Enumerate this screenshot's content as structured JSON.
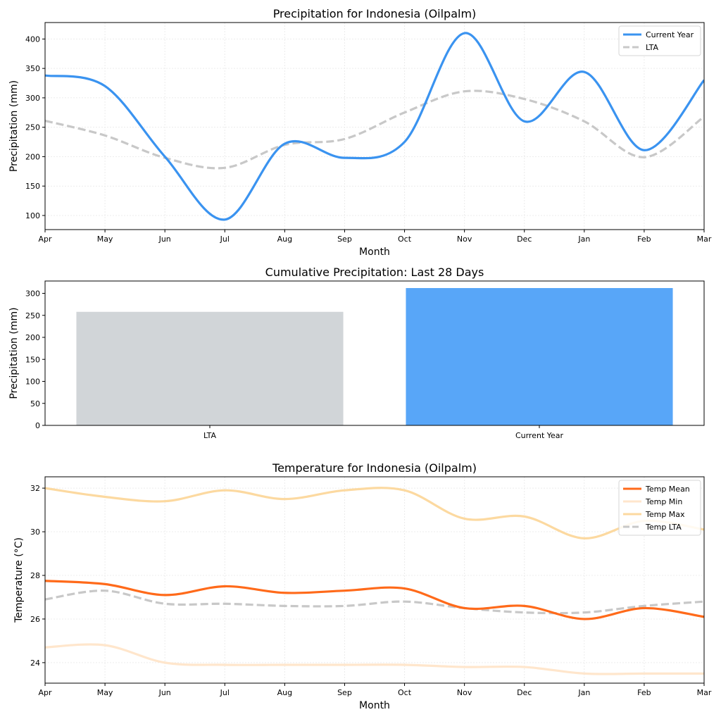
{
  "chart_data": [
    {
      "type": "line",
      "title": "Precipitation for Indonesia (Oilpalm)",
      "xlabel": "Month",
      "ylabel": "Precipitation (mm)",
      "categories": [
        "Apr",
        "May",
        "Jun",
        "Jul",
        "Aug",
        "Sep",
        "Oct",
        "Nov",
        "Dec",
        "Jan",
        "Feb",
        "Mar"
      ],
      "ylim": [
        76,
        428
      ],
      "yticks": [
        100,
        150,
        200,
        250,
        300,
        350,
        400
      ],
      "grid": true,
      "legend": "top-right",
      "series": [
        {
          "name": "Current Year",
          "color": "#3a93f0",
          "style": "solid",
          "values": [
            338,
            320,
            200,
            93,
            222,
            198,
            225,
            410,
            260,
            344,
            211,
            330
          ]
        },
        {
          "name": "LTA",
          "color": "#c8c8c8",
          "style": "dashed",
          "values": [
            261,
            236,
            198,
            181,
            220,
            230,
            275,
            311,
            298,
            260,
            199,
            268
          ]
        }
      ]
    },
    {
      "type": "bar",
      "title": "Cumulative Precipitation: Last 28 Days",
      "xlabel": "",
      "ylabel": "Precipitation (mm)",
      "categories": [
        "LTA",
        "Current Year"
      ],
      "values": [
        258,
        312
      ],
      "colors": [
        "#d1d5d8",
        "#58a6f8"
      ],
      "ylim": [
        0,
        328
      ],
      "yticks": [
        0,
        50,
        100,
        150,
        200,
        250,
        300
      ],
      "grid": false
    },
    {
      "type": "line",
      "title": "Temperature for Indonesia (Oilpalm)",
      "xlabel": "Month",
      "ylabel": "Temperature (°C)",
      "categories": [
        "Apr",
        "May",
        "Jun",
        "Jul",
        "Aug",
        "Sep",
        "Oct",
        "Nov",
        "Dec",
        "Jan",
        "Feb",
        "Mar"
      ],
      "ylim": [
        23.06,
        32.52
      ],
      "yticks": [
        24,
        26,
        28,
        30,
        32
      ],
      "grid": true,
      "legend": "top-right",
      "series": [
        {
          "name": "Temp Mean",
          "color": "#ff6a1a",
          "style": "solid",
          "values": [
            27.75,
            27.6,
            27.1,
            27.5,
            27.2,
            27.3,
            27.4,
            26.5,
            26.6,
            26.0,
            26.5,
            26.1
          ]
        },
        {
          "name": "Temp Min",
          "color": "#ffe6cc",
          "style": "solid",
          "values": [
            24.7,
            24.8,
            24.0,
            23.9,
            23.9,
            23.9,
            23.9,
            23.8,
            23.8,
            23.5,
            23.5,
            23.5
          ]
        },
        {
          "name": "Temp Max",
          "color": "#fcd9a0",
          "style": "solid",
          "values": [
            32.0,
            31.6,
            31.4,
            31.9,
            31.5,
            31.9,
            31.9,
            30.6,
            30.7,
            29.7,
            30.5,
            30.1
          ]
        },
        {
          "name": "Temp LTA",
          "color": "#c8c8c8",
          "style": "dashed",
          "values": [
            26.9,
            27.3,
            26.7,
            26.7,
            26.6,
            26.6,
            26.8,
            26.5,
            26.3,
            26.3,
            26.6,
            26.8
          ]
        }
      ]
    }
  ]
}
